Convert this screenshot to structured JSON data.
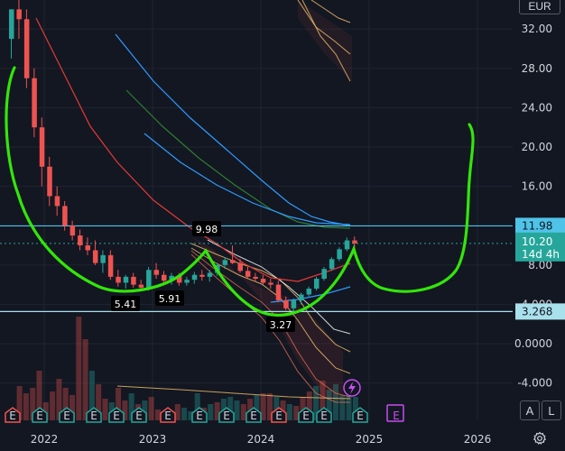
{
  "currency_button": "EUR",
  "scale_buttons": {
    "auto": "A",
    "log": "L"
  },
  "chart_data": {
    "type": "candlestick",
    "y_axis": {
      "ticks": [
        "32.00",
        "28.00",
        "24.00",
        "20.00",
        "16.00",
        "12.00",
        "8.00",
        "4.000",
        "0.0000",
        "-4.000"
      ],
      "values": [
        32,
        28,
        24,
        20,
        16,
        12,
        8,
        4,
        0,
        -4
      ]
    },
    "x_axis": {
      "ticks": [
        "2022",
        "2023",
        "2024",
        "2025",
        "2026"
      ]
    },
    "price_levels": [
      {
        "label": "11.98",
        "value": 11.98,
        "color": "#4fc3e8",
        "text_color": "#131722"
      },
      {
        "label": "3.268",
        "value": 3.268,
        "color": "#a8e0ec",
        "text_color": "#131722"
      }
    ],
    "current_price": {
      "label": "10.20",
      "countdown": "14d 4h",
      "value": 10.2,
      "color": "#26a69a"
    },
    "annotations": [
      {
        "text": "9.98",
        "kind": "high"
      },
      {
        "text": "5.41",
        "kind": "low"
      },
      {
        "text": "5.91",
        "kind": "low"
      },
      {
        "text": "3.27",
        "kind": "low"
      }
    ],
    "earnings_markers": "E",
    "colors": {
      "up": "#26a69a",
      "down": "#ef5350",
      "cup_drawing": "#32e60a",
      "background": "#131722"
    }
  }
}
